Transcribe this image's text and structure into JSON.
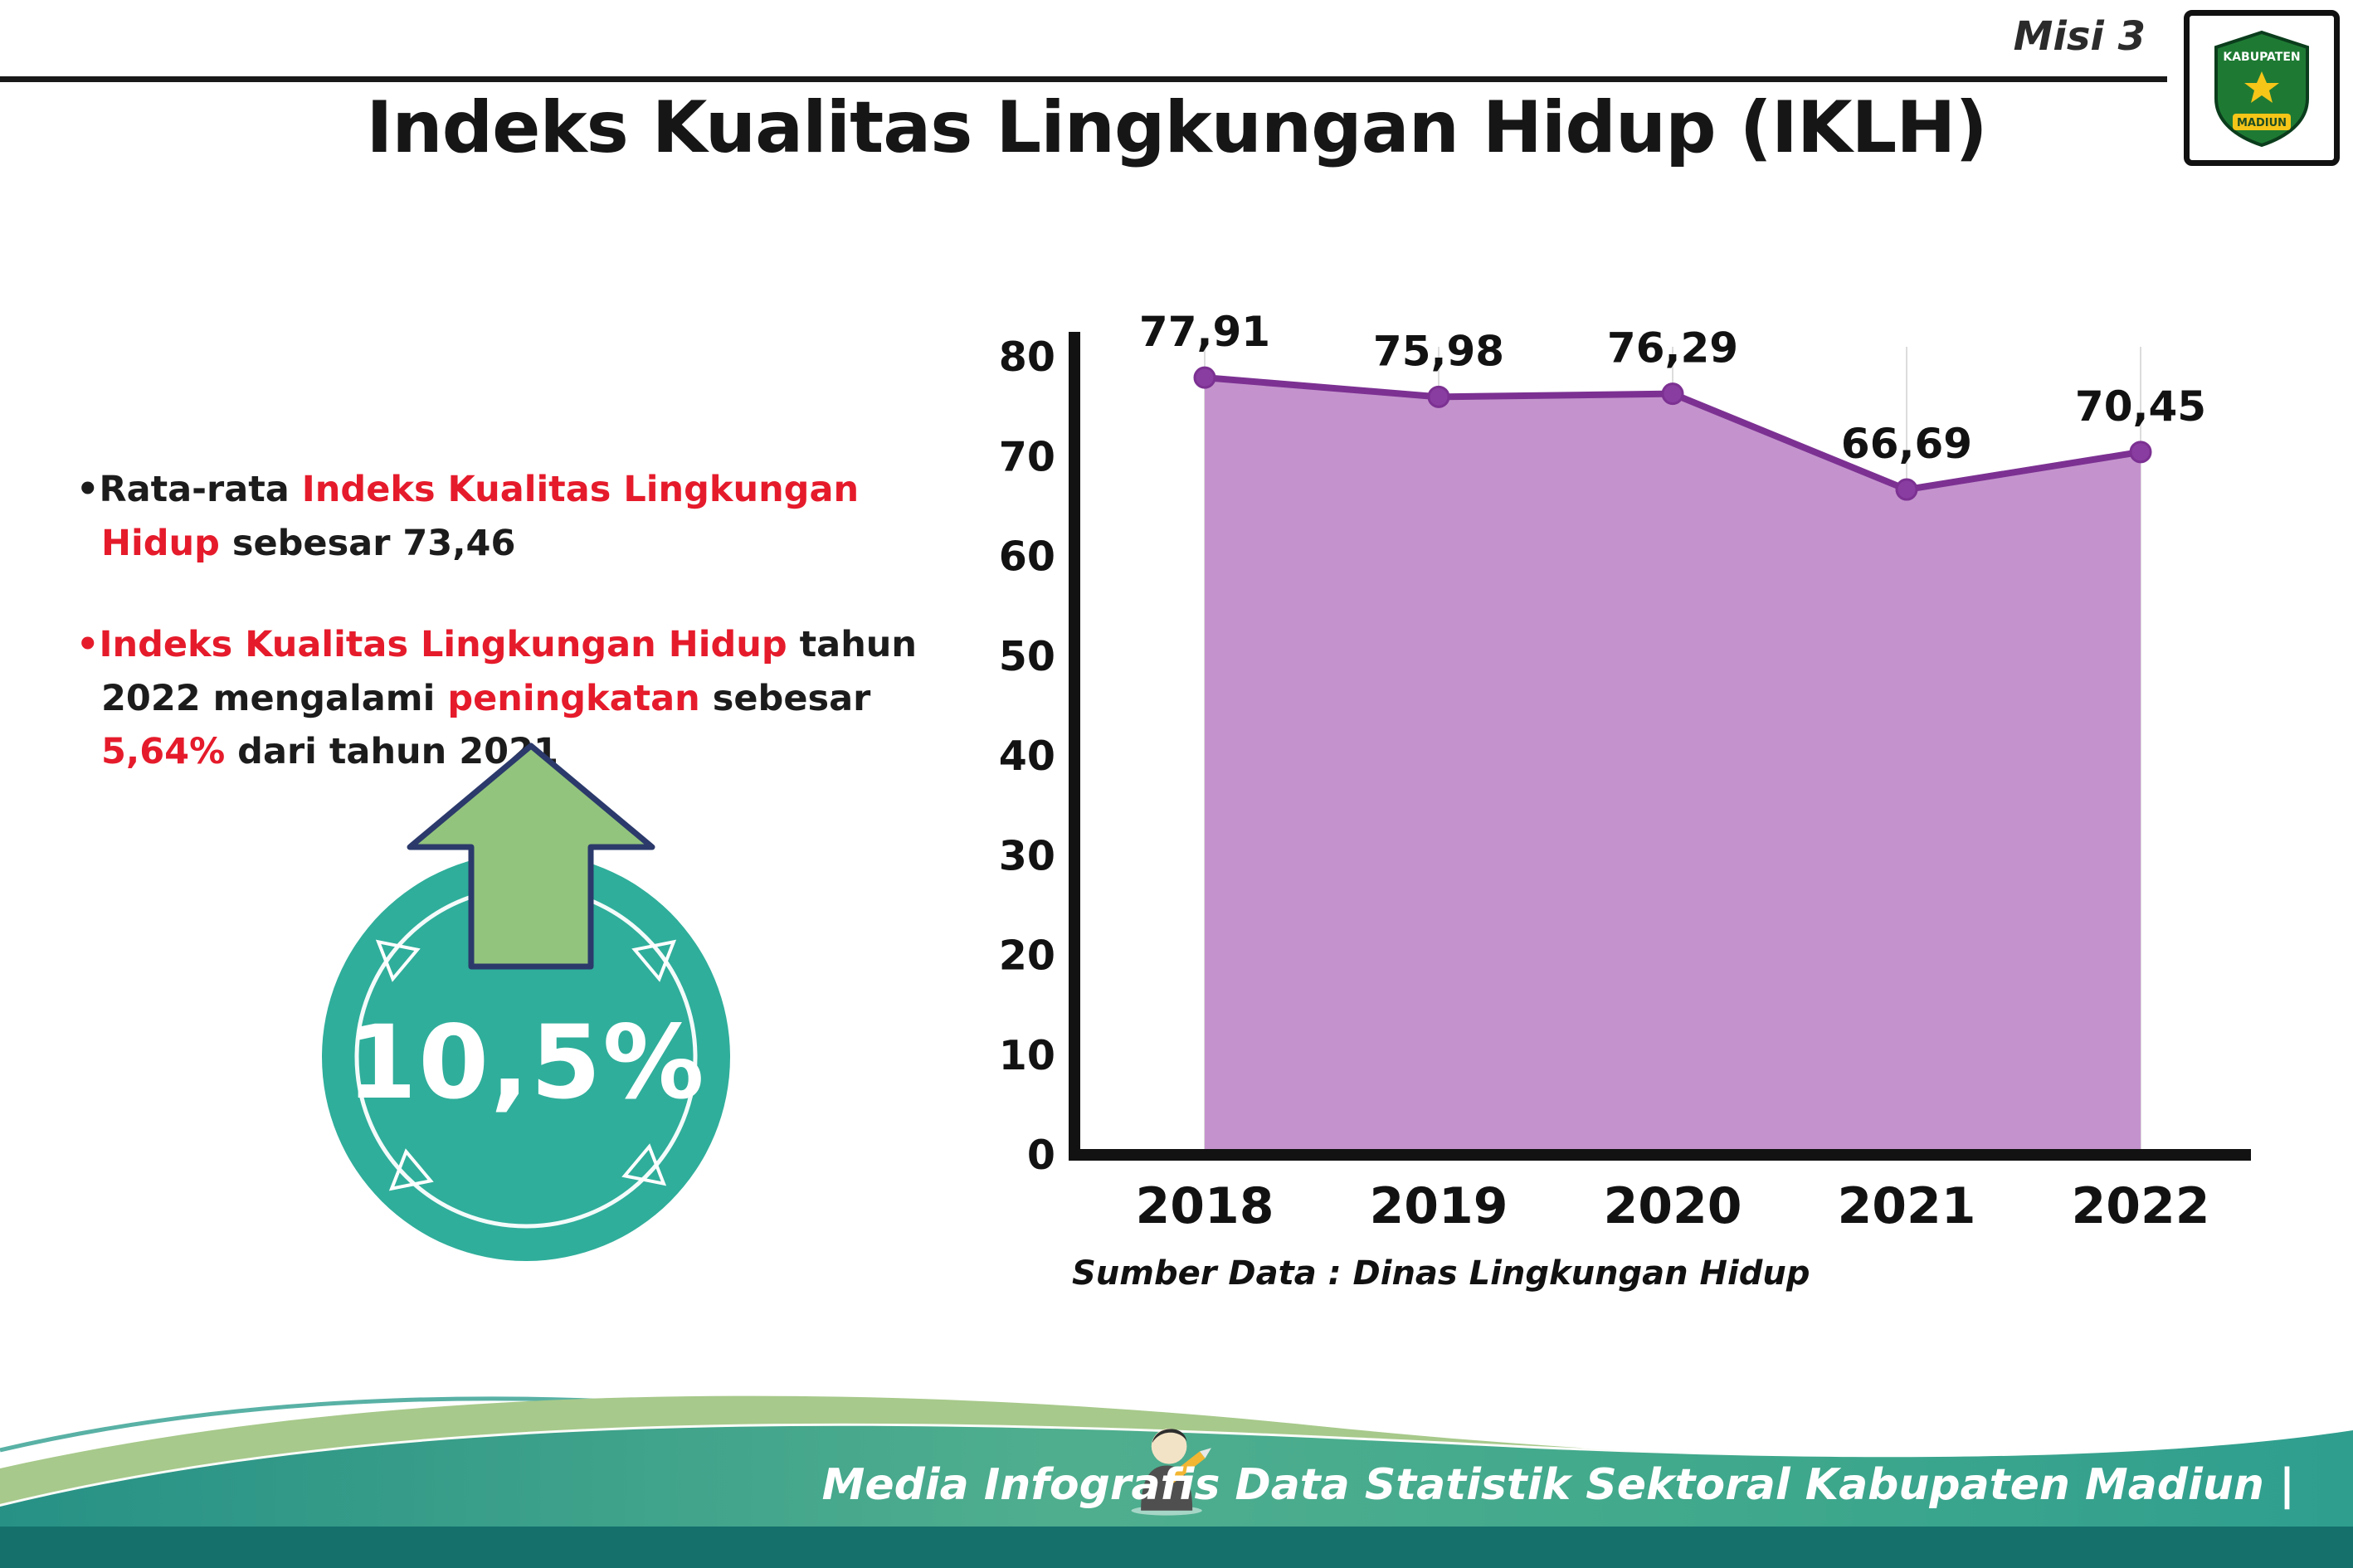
{
  "header": {
    "misi_label": "Misi 3",
    "title": "Indeks Kualitas Lingkungan Hidup (IKLH)",
    "logo": {
      "top_text": "KABUPATEN",
      "bottom_text": "MADIUN"
    }
  },
  "bullets": {
    "b1": {
      "marker": "•",
      "s1": "Rata-rata ",
      "s2": "Indeks Kualitas Lingkungan Hidup",
      "s3": " sebesar 73,46"
    },
    "b2": {
      "marker": "•",
      "s1": "Indeks Kualitas Lingkungan Hidup",
      "s2": " tahun 2022 mengalami ",
      "s3": "peningkatan",
      "s4": " sebesar ",
      "s5": "5,64%",
      "s6": " dari tahun 2021"
    }
  },
  "badge": {
    "value": "10,5%"
  },
  "chart_data": {
    "type": "area",
    "title": "Indeks Kualitas Lingkungan Hidup (IKLH)",
    "categories": [
      "2018",
      "2019",
      "2020",
      "2021",
      "2022"
    ],
    "values": [
      77.91,
      75.98,
      76.29,
      66.69,
      70.45
    ],
    "point_labels": [
      "77,91",
      "75,98",
      "76,29",
      "66,69",
      "70,45"
    ],
    "xlabel": "",
    "ylabel": "",
    "ylim": [
      0,
      80
    ],
    "yticks": [
      0,
      10,
      20,
      30,
      40,
      50,
      60,
      70,
      80
    ],
    "grid": "vertical-light",
    "legend": "none",
    "area_color": "#c493cd",
    "line_color": "#7c3192",
    "point_color": "#8a3da1"
  },
  "source_note": "Sumber Data : Dinas Lingkungan Hidup",
  "footer": {
    "caption": "Media Infografis Data Statistik Sektoral Kabupaten Madiun |"
  },
  "colors": {
    "accent_red": "#e51b2b",
    "badge_teal": "#2fae9b",
    "arrow_green": "#93c47d",
    "footer_teal": "#2f9e8f",
    "footer_sage": "#a7c98b",
    "footer_dark": "#15706c"
  }
}
